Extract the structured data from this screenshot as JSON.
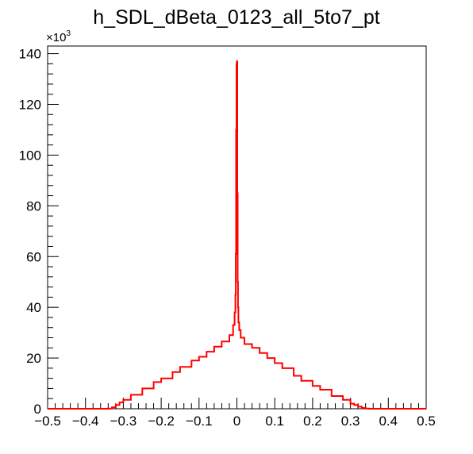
{
  "chart_data": {
    "type": "line",
    "style": "histogram-step",
    "title": "h_SDL_dBeta_0123_all_5to7_pt",
    "xlabel": "",
    "ylabel": "",
    "xlim": [
      -0.5,
      0.5
    ],
    "ylim": [
      0,
      143000
    ],
    "y_multiplier_base": "×10",
    "y_multiplier_exponent": "3",
    "grid": false,
    "legend": "none",
    "line_color": "#ff0000",
    "x_ticks": [
      -0.5,
      -0.4,
      -0.3,
      -0.2,
      -0.1,
      0,
      0.1,
      0.2,
      0.3,
      0.4,
      0.5
    ],
    "x_tick_labels": [
      "−0.5",
      "−0.4",
      "−0.3",
      "−0.2",
      "−0.1",
      "0",
      "0.1",
      "0.2",
      "0.3",
      "0.4",
      "0.5"
    ],
    "y_ticks": [
      0,
      20000,
      40000,
      60000,
      80000,
      100000,
      120000,
      140000
    ],
    "y_tick_labels": [
      "0",
      "20",
      "40",
      "60",
      "80",
      "100",
      "120",
      "140"
    ],
    "series": [
      {
        "x": [
          -0.5,
          -0.4,
          -0.35,
          -0.34,
          -0.33,
          -0.32,
          -0.31,
          -0.3,
          -0.28,
          -0.25,
          -0.22,
          -0.2,
          -0.17,
          -0.15,
          -0.12,
          -0.1,
          -0.08,
          -0.06,
          -0.04,
          -0.02,
          -0.01,
          -0.006,
          -0.004,
          -0.003,
          -0.002,
          -0.001,
          0.0,
          0.001,
          0.002,
          0.003,
          0.004,
          0.006,
          0.01,
          0.02,
          0.04,
          0.06,
          0.08,
          0.1,
          0.12,
          0.15,
          0.17,
          0.2,
          0.22,
          0.25,
          0.28,
          0.3,
          0.31,
          0.32,
          0.33,
          0.34,
          0.35,
          0.4,
          0.5
        ],
        "y": [
          0,
          0,
          0,
          100,
          600,
          1500,
          2500,
          3500,
          5500,
          8000,
          10500,
          12000,
          14500,
          16500,
          19000,
          20500,
          22500,
          24500,
          26500,
          29000,
          33000,
          38000,
          45000,
          61000,
          110000,
          136000,
          137000,
          85000,
          50000,
          40000,
          34000,
          31000,
          28000,
          25500,
          24000,
          22000,
          20000,
          18000,
          16000,
          13000,
          11000,
          9000,
          7500,
          5000,
          3500,
          2000,
          1500,
          800,
          300,
          50,
          0,
          0,
          0
        ]
      }
    ]
  }
}
